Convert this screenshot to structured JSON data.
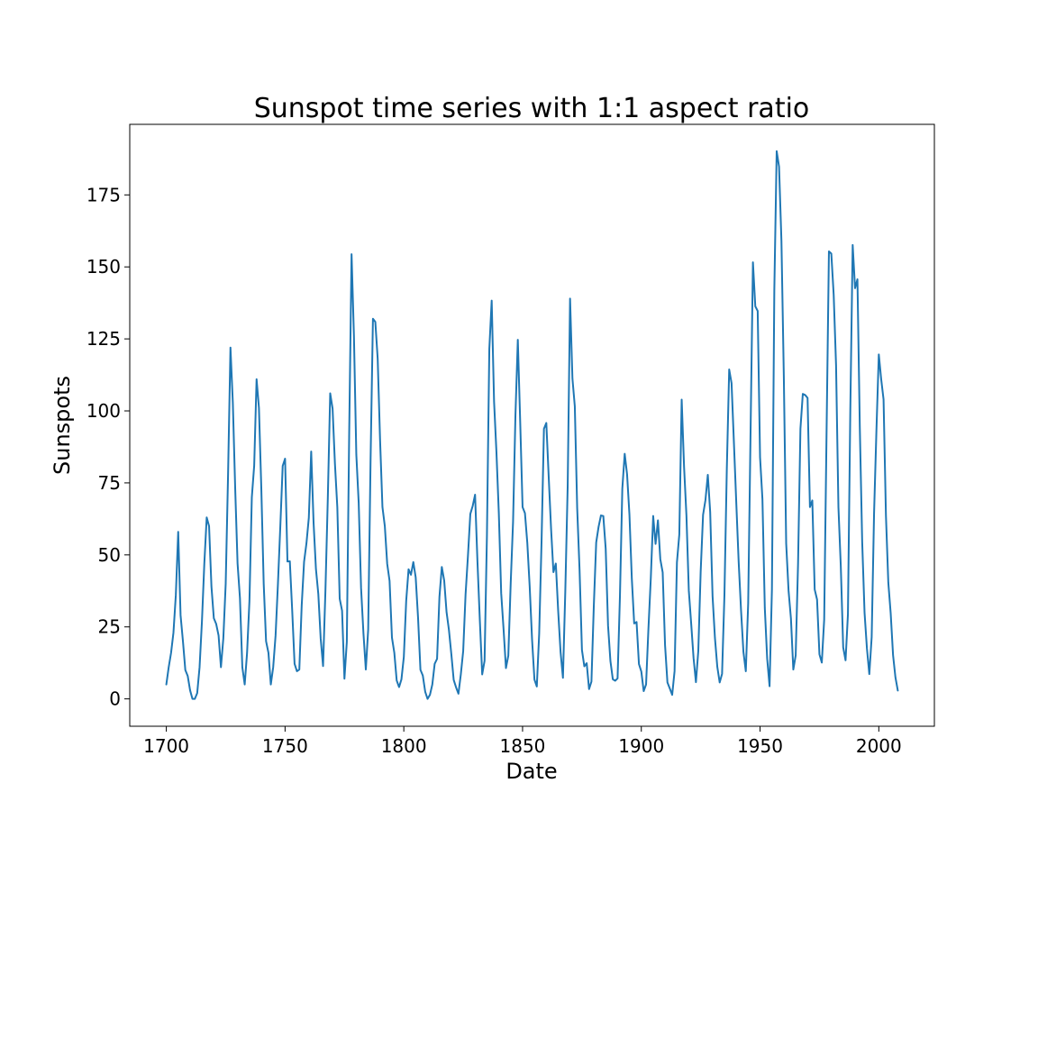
{
  "chart_data": {
    "type": "line",
    "title": "Sunspot time series with 1:1 aspect ratio",
    "xlabel": "Date",
    "ylabel": "Sunspots",
    "xlim": [
      1684.6,
      2023.4
    ],
    "ylim": [
      -9.5,
      199.5
    ],
    "xticks": [
      1700,
      1750,
      1800,
      1850,
      1900,
      1950,
      2000
    ],
    "yticks": [
      0,
      25,
      50,
      75,
      100,
      125,
      150,
      175
    ],
    "grid": false,
    "legend": "none",
    "series": [
      {
        "color": "#1f77b4",
        "x": [
          1700,
          1701,
          1702,
          1703,
          1704,
          1705,
          1706,
          1707,
          1708,
          1709,
          1710,
          1711,
          1712,
          1713,
          1714,
          1715,
          1716,
          1717,
          1718,
          1719,
          1720,
          1721,
          1722,
          1723,
          1724,
          1725,
          1726,
          1727,
          1728,
          1729,
          1730,
          1731,
          1732,
          1733,
          1734,
          1735,
          1736,
          1737,
          1738,
          1739,
          1740,
          1741,
          1742,
          1743,
          1744,
          1745,
          1746,
          1747,
          1748,
          1749,
          1750,
          1751,
          1752,
          1753,
          1754,
          1755,
          1756,
          1757,
          1758,
          1759,
          1760,
          1761,
          1762,
          1763,
          1764,
          1765,
          1766,
          1767,
          1768,
          1769,
          1770,
          1771,
          1772,
          1773,
          1774,
          1775,
          1776,
          1777,
          1778,
          1779,
          1780,
          1781,
          1782,
          1783,
          1784,
          1785,
          1786,
          1787,
          1788,
          1789,
          1790,
          1791,
          1792,
          1793,
          1794,
          1795,
          1796,
          1797,
          1798,
          1799,
          1800,
          1801,
          1802,
          1803,
          1804,
          1805,
          1806,
          1807,
          1808,
          1809,
          1810,
          1811,
          1812,
          1813,
          1814,
          1815,
          1816,
          1817,
          1818,
          1819,
          1820,
          1821,
          1822,
          1823,
          1824,
          1825,
          1826,
          1827,
          1828,
          1829,
          1830,
          1831,
          1832,
          1833,
          1834,
          1835,
          1836,
          1837,
          1838,
          1839,
          1840,
          1841,
          1842,
          1843,
          1844,
          1845,
          1846,
          1847,
          1848,
          1849,
          1850,
          1851,
          1852,
          1853,
          1854,
          1855,
          1856,
          1857,
          1858,
          1859,
          1860,
          1861,
          1862,
          1863,
          1864,
          1865,
          1866,
          1867,
          1868,
          1869,
          1870,
          1871,
          1872,
          1873,
          1874,
          1875,
          1876,
          1877,
          1878,
          1879,
          1880,
          1881,
          1882,
          1883,
          1884,
          1885,
          1886,
          1887,
          1888,
          1889,
          1890,
          1891,
          1892,
          1893,
          1894,
          1895,
          1896,
          1897,
          1898,
          1899,
          1900,
          1901,
          1902,
          1903,
          1904,
          1905,
          1906,
          1907,
          1908,
          1909,
          1910,
          1911,
          1912,
          1913,
          1914,
          1915,
          1916,
          1917,
          1918,
          1919,
          1920,
          1921,
          1922,
          1923,
          1924,
          1925,
          1926,
          1927,
          1928,
          1929,
          1930,
          1931,
          1932,
          1933,
          1934,
          1935,
          1936,
          1937,
          1938,
          1939,
          1940,
          1941,
          1942,
          1943,
          1944,
          1945,
          1946,
          1947,
          1948,
          1949,
          1950,
          1951,
          1952,
          1953,
          1954,
          1955,
          1956,
          1957,
          1958,
          1959,
          1960,
          1961,
          1962,
          1963,
          1964,
          1965,
          1966,
          1967,
          1968,
          1969,
          1970,
          1971,
          1972,
          1973,
          1974,
          1975,
          1976,
          1977,
          1978,
          1979,
          1980,
          1981,
          1982,
          1983,
          1984,
          1985,
          1986,
          1987,
          1988,
          1989,
          1990,
          1991,
          1992,
          1993,
          1994,
          1995,
          1996,
          1997,
          1998,
          1999,
          2000,
          2001,
          2002,
          2003,
          2004,
          2005,
          2006,
          2007,
          2008
        ],
        "y": [
          5,
          11,
          16,
          23,
          36,
          58,
          29,
          20,
          10,
          8,
          3,
          0,
          0,
          2,
          11,
          27,
          47,
          63,
          60,
          39,
          28,
          26,
          22,
          11,
          21,
          40,
          78,
          122,
          103,
          73,
          47,
          35,
          11,
          5,
          16,
          34,
          70,
          81,
          111,
          101,
          73,
          40,
          20,
          16,
          5,
          11,
          22,
          40,
          60,
          80.9,
          83.4,
          47.7,
          47.8,
          30.7,
          12.2,
          9.6,
          10.2,
          32.4,
          47.6,
          54,
          62.9,
          85.9,
          61.2,
          45.1,
          36.4,
          20.9,
          11.4,
          37.8,
          69.8,
          106.1,
          100.8,
          81.6,
          66.5,
          34.8,
          30.6,
          7,
          19.8,
          92.5,
          154.4,
          125.9,
          84.8,
          68.1,
          38.5,
          22.8,
          10.2,
          24.1,
          82.9,
          132,
          130.9,
          118.1,
          89.9,
          66.6,
          60,
          46.9,
          41,
          21.3,
          16,
          6.4,
          4.1,
          6.8,
          14.5,
          34,
          45,
          43.1,
          47.5,
          42.2,
          28.1,
          10.1,
          8.1,
          2.5,
          0,
          1.4,
          5,
          12.2,
          13.9,
          35.4,
          45.8,
          41.1,
          30.1,
          23.9,
          15.6,
          6.6,
          4,
          1.8,
          8.5,
          16.6,
          36.3,
          49.6,
          64.2,
          67,
          70.9,
          47.8,
          27.5,
          8.5,
          13.2,
          56.9,
          121.5,
          138.3,
          103.2,
          85.7,
          64.6,
          36.7,
          24.2,
          10.7,
          15,
          40.1,
          61.5,
          98.5,
          124.7,
          96.3,
          66.6,
          64.5,
          54.1,
          39,
          20.6,
          6.7,
          4.3,
          22.7,
          54.8,
          93.8,
          95.8,
          77.2,
          59.1,
          44,
          47,
          30.5,
          16.3,
          7.3,
          37.6,
          74,
          139,
          111.2,
          101.6,
          66.2,
          44.7,
          17,
          11.3,
          12.4,
          3.4,
          6,
          32.3,
          54.3,
          59.7,
          63.7,
          63.5,
          52.2,
          25.4,
          13.1,
          6.8,
          6.3,
          7.1,
          35.6,
          73,
          85.1,
          78,
          64,
          41.8,
          26.2,
          26.7,
          12.1,
          9.5,
          2.7,
          5,
          24.4,
          42,
          63.5,
          53.8,
          62,
          48.5,
          43.9,
          18.6,
          5.7,
          3.6,
          1.4,
          9.6,
          47.4,
          57.1,
          103.9,
          80.6,
          63.6,
          37.6,
          26.1,
          14.2,
          5.8,
          16.7,
          44.3,
          63.9,
          69,
          77.8,
          64.9,
          35.7,
          21.2,
          11.1,
          5.7,
          8.7,
          36.1,
          79.7,
          114.4,
          109.6,
          88.8,
          67.8,
          47.5,
          30.6,
          16.3,
          9.6,
          33.2,
          92.6,
          151.6,
          136.3,
          134.7,
          83.9,
          69.4,
          31.5,
          13.9,
          4.4,
          38,
          141.7,
          190.2,
          184.8,
          159,
          112.3,
          53.9,
          37.6,
          27.9,
          10.2,
          15.1,
          47,
          93.8,
          105.9,
          105.5,
          104.5,
          66.6,
          68.9,
          38,
          34.5,
          15.5,
          12.6,
          27.5,
          92.5,
          155.4,
          154.6,
          140.4,
          115.9,
          66.6,
          45.9,
          17.9,
          13.4,
          29.4,
          100.2,
          157.6,
          142.6,
          145.7,
          94.3,
          54.6,
          29.9,
          17.5,
          8.6,
          21.5,
          64.3,
          93.3,
          119.6,
          111,
          104,
          63.7,
          40.4,
          29.8,
          15.2,
          7.5,
          2.9
        ]
      }
    ]
  }
}
